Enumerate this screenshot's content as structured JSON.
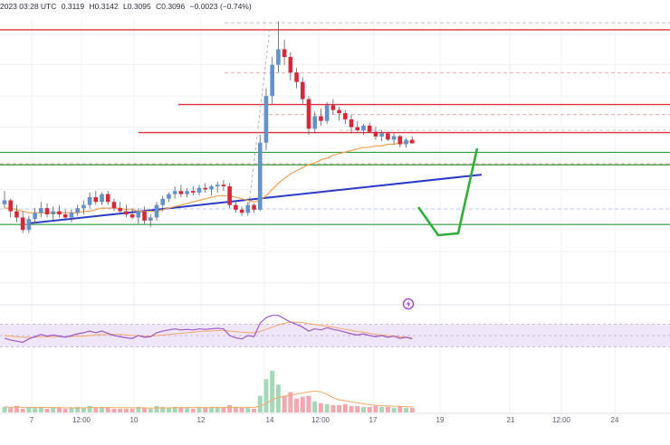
{
  "header": {
    "timestamp": "2023 03:28 UTC",
    "open": "0.3119",
    "high": "H0.3142",
    "low": "L0.3095",
    "close": "C0.3096",
    "change": "−0.0023 (−0.74%)"
  },
  "colors": {
    "bull": "#6391c9",
    "bear": "#d7283a",
    "wick": "#555a66",
    "horizontal_red": "#e0313d",
    "horizontal_green": "#2e9e3a",
    "trendline": "#2a3ac4",
    "forecast": "#2fae3a",
    "ma": "#f0a050",
    "rsi": "#9b59c6",
    "rsi_ma": "#f0a86a",
    "rsi_band": "#eadcf7",
    "vol_up": "#a6d8b8",
    "vol_down": "#f1a8ae",
    "vol_ma": "#f0a86a",
    "grid": "#eef0f3",
    "dash_red": "#e88b93",
    "dash_gray": "#b8bcc4",
    "dash_blue": "#a8b3e8"
  },
  "chart_data": {
    "type": "candlestick",
    "ylim": [
      0.21,
      0.39
    ],
    "x_tick_labels": [
      "7",
      "12:00",
      "10",
      "12",
      "14",
      "12:00",
      "17",
      "19",
      "21",
      "12:00",
      "24"
    ],
    "candles": [
      [
        0.2705,
        0.279,
        0.268,
        0.273
      ],
      [
        0.273,
        0.274,
        0.262,
        0.266
      ],
      [
        0.266,
        0.27,
        0.259,
        0.262
      ],
      [
        0.262,
        0.266,
        0.252,
        0.254
      ],
      [
        0.254,
        0.263,
        0.252,
        0.261
      ],
      [
        0.261,
        0.268,
        0.258,
        0.265
      ],
      [
        0.265,
        0.272,
        0.262,
        0.268
      ],
      [
        0.268,
        0.271,
        0.262,
        0.264
      ],
      [
        0.264,
        0.269,
        0.26,
        0.266
      ],
      [
        0.266,
        0.27,
        0.262,
        0.264
      ],
      [
        0.264,
        0.267,
        0.26,
        0.262
      ],
      [
        0.262,
        0.267,
        0.259,
        0.265
      ],
      [
        0.265,
        0.27,
        0.263,
        0.268
      ],
      [
        0.268,
        0.273,
        0.264,
        0.27
      ],
      [
        0.27,
        0.278,
        0.268,
        0.275
      ],
      [
        0.275,
        0.279,
        0.27,
        0.272
      ],
      [
        0.272,
        0.278,
        0.27,
        0.277
      ],
      [
        0.277,
        0.279,
        0.27,
        0.272
      ],
      [
        0.272,
        0.274,
        0.266,
        0.268
      ],
      [
        0.268,
        0.272,
        0.264,
        0.266
      ],
      [
        0.266,
        0.27,
        0.262,
        0.264
      ],
      [
        0.264,
        0.268,
        0.261,
        0.262
      ],
      [
        0.262,
        0.268,
        0.258,
        0.266
      ],
      [
        0.266,
        0.269,
        0.258,
        0.26
      ],
      [
        0.26,
        0.264,
        0.256,
        0.262
      ],
      [
        0.262,
        0.272,
        0.26,
        0.27
      ],
      [
        0.27,
        0.276,
        0.266,
        0.274
      ],
      [
        0.274,
        0.278,
        0.272,
        0.277
      ],
      [
        0.277,
        0.282,
        0.274,
        0.279
      ],
      [
        0.279,
        0.283,
        0.275,
        0.277
      ],
      [
        0.277,
        0.281,
        0.275,
        0.279
      ],
      [
        0.279,
        0.282,
        0.276,
        0.278
      ],
      [
        0.278,
        0.283,
        0.276,
        0.281
      ],
      [
        0.281,
        0.284,
        0.278,
        0.28
      ],
      [
        0.28,
        0.283,
        0.276,
        0.282
      ],
      [
        0.282,
        0.285,
        0.278,
        0.283
      ],
      [
        0.283,
        0.286,
        0.279,
        0.282
      ],
      [
        0.282,
        0.284,
        0.268,
        0.27
      ],
      [
        0.27,
        0.272,
        0.265,
        0.267
      ],
      [
        0.267,
        0.269,
        0.263,
        0.265
      ],
      [
        0.265,
        0.272,
        0.263,
        0.27
      ],
      [
        0.27,
        0.271,
        0.265,
        0.267
      ],
      [
        0.267,
        0.315,
        0.266,
        0.31
      ],
      [
        0.31,
        0.345,
        0.305,
        0.34
      ],
      [
        0.34,
        0.365,
        0.335,
        0.36
      ],
      [
        0.36,
        0.388,
        0.355,
        0.37
      ],
      [
        0.37,
        0.376,
        0.36,
        0.365
      ],
      [
        0.365,
        0.368,
        0.35,
        0.355
      ],
      [
        0.355,
        0.358,
        0.345,
        0.349
      ],
      [
        0.349,
        0.352,
        0.335,
        0.338
      ],
      [
        0.338,
        0.34,
        0.315,
        0.319
      ],
      [
        0.319,
        0.33,
        0.316,
        0.327
      ],
      [
        0.327,
        0.332,
        0.321,
        0.324
      ],
      [
        0.324,
        0.336,
        0.322,
        0.334
      ],
      [
        0.334,
        0.338,
        0.328,
        0.331
      ],
      [
        0.331,
        0.333,
        0.324,
        0.329
      ],
      [
        0.329,
        0.331,
        0.322,
        0.325
      ],
      [
        0.325,
        0.328,
        0.316,
        0.32
      ],
      [
        0.32,
        0.324,
        0.317,
        0.318
      ],
      [
        0.318,
        0.322,
        0.315,
        0.321
      ],
      [
        0.321,
        0.323,
        0.316,
        0.317
      ],
      [
        0.317,
        0.32,
        0.312,
        0.314
      ],
      [
        0.314,
        0.318,
        0.311,
        0.316
      ],
      [
        0.316,
        0.317,
        0.311,
        0.312
      ],
      [
        0.312,
        0.316,
        0.309,
        0.3142
      ],
      [
        0.3142,
        0.315,
        0.307,
        0.309
      ],
      [
        0.309,
        0.313,
        0.307,
        0.3119
      ],
      [
        0.3119,
        0.3142,
        0.3095,
        0.3096
      ]
    ],
    "volume": [
      6,
      5,
      7,
      4,
      5,
      5,
      6,
      4,
      5,
      5,
      4,
      5,
      6,
      5,
      7,
      5,
      6,
      5,
      4,
      4,
      4,
      4,
      6,
      5,
      4,
      7,
      6,
      5,
      6,
      5,
      5,
      4,
      6,
      5,
      5,
      6,
      5,
      8,
      6,
      5,
      5,
      4,
      18,
      36,
      45,
      30,
      18,
      22,
      15,
      17,
      18,
      12,
      10,
      9,
      8,
      8,
      9,
      7,
      7,
      6,
      6,
      7,
      6,
      6,
      5,
      7,
      5,
      5
    ],
    "ma": [
      0.268,
      0.268,
      0.267,
      0.266,
      0.265,
      0.265,
      0.265,
      0.265,
      0.265,
      0.265,
      0.265,
      0.265,
      0.265,
      0.266,
      0.266,
      0.267,
      0.268,
      0.268,
      0.268,
      0.268,
      0.267,
      0.267,
      0.266,
      0.266,
      0.266,
      0.266,
      0.267,
      0.268,
      0.269,
      0.27,
      0.271,
      0.272,
      0.273,
      0.274,
      0.275,
      0.276,
      0.276,
      0.276,
      0.275,
      0.274,
      0.273,
      0.272,
      0.273,
      0.276,
      0.28,
      0.284,
      0.287,
      0.29,
      0.292,
      0.294,
      0.296,
      0.297,
      0.299,
      0.3,
      0.302,
      0.303,
      0.304,
      0.305,
      0.306,
      0.307,
      0.307,
      0.308,
      0.308,
      0.309,
      0.309,
      0.31,
      0.31,
      0.311
    ],
    "rsi": [
      45,
      42,
      40,
      38,
      44,
      48,
      52,
      49,
      51,
      49,
      47,
      50,
      53,
      55,
      58,
      55,
      58,
      54,
      50,
      48,
      46,
      45,
      50,
      47,
      48,
      55,
      58,
      60,
      62,
      60,
      61,
      60,
      62,
      61,
      62,
      63,
      62,
      50,
      46,
      44,
      50,
      48,
      72,
      82,
      86,
      86,
      80,
      74,
      70,
      65,
      58,
      62,
      60,
      64,
      61,
      59,
      56,
      53,
      51,
      53,
      50,
      48,
      50,
      47,
      49,
      45,
      47,
      44
    ],
    "rsi_ma": [
      50,
      49,
      48,
      47,
      47,
      47,
      48,
      48,
      48,
      48,
      48,
      48,
      49,
      49,
      50,
      51,
      52,
      52,
      52,
      52,
      51,
      50,
      50,
      49,
      49,
      50,
      51,
      52,
      53,
      54,
      55,
      56,
      57,
      58,
      58,
      59,
      59,
      58,
      57,
      56,
      55,
      55,
      57,
      61,
      65,
      69,
      72,
      74,
      74,
      73,
      71,
      70,
      68,
      67,
      65,
      63,
      61,
      59,
      57,
      56,
      54,
      52,
      51,
      50,
      49,
      48,
      47,
      46
    ]
  },
  "levels": {
    "red": [
      0.3825,
      0.3345,
      0.3165
    ],
    "green": [
      0.3038,
      0.2958,
      0.2575
    ]
  }
}
